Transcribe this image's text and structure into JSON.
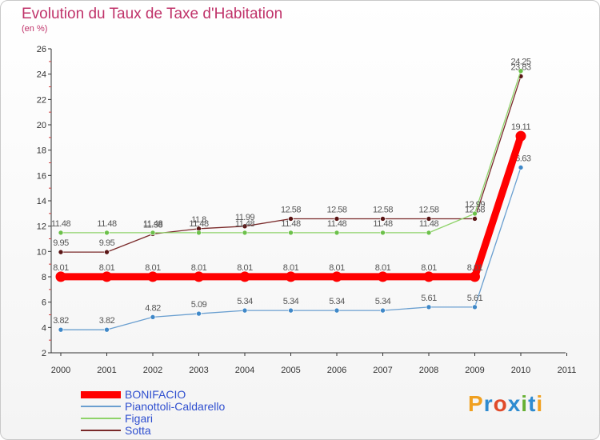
{
  "title": "Evolution du Taux de Taxe d'Habitation",
  "subtitle": "(en %)",
  "logo": {
    "text": "Proxiti",
    "letter_colors": [
      "#f0a020",
      "#2e8bd0",
      "#e04b2a",
      "#2e8bd0",
      "#66b032",
      "#2e8bd0",
      "#f0a020"
    ]
  },
  "chart_data": {
    "type": "line",
    "x": [
      2000,
      2001,
      2002,
      2003,
      2004,
      2005,
      2006,
      2007,
      2008,
      2009,
      2010
    ],
    "x_ticks": [
      2000,
      2001,
      2002,
      2003,
      2004,
      2005,
      2006,
      2007,
      2008,
      2009,
      2010,
      2011
    ],
    "y_ticks": [
      2,
      4,
      6,
      8,
      10,
      12,
      14,
      16,
      18,
      20,
      22,
      24,
      26
    ],
    "xlim": [
      2000,
      2011
    ],
    "ylim": [
      2,
      26
    ],
    "grid": false,
    "legend": "bottom-left",
    "series": [
      {
        "name": "Sotta",
        "color": "#7a2a2a",
        "marker": "#5a1515",
        "width": 1.3,
        "values": [
          9.95,
          9.95,
          11.38,
          11.8,
          11.99,
          12.58,
          12.58,
          12.58,
          12.58,
          12.58,
          23.83
        ],
        "labels": [
          "9.95",
          "9.95",
          "11.38",
          "11.8",
          "11.99",
          "12.58",
          "12.58",
          "12.58",
          "12.58",
          "12.58",
          "23.83"
        ]
      },
      {
        "name": "Figari",
        "color": "#8fd36a",
        "marker": "#6cc04a",
        "width": 1.3,
        "values": [
          11.48,
          11.48,
          11.48,
          11.48,
          11.48,
          11.48,
          11.48,
          11.48,
          11.48,
          12.99,
          24.25
        ],
        "labels": [
          "11.48",
          "11.48",
          "11.48",
          "11.48",
          "11.48",
          "11.48",
          "11.48",
          "11.48",
          "11.48",
          "12.99",
          "24.25"
        ]
      },
      {
        "name": "Pianottoli-Caldarello",
        "color": "#6a9fd0",
        "marker": "#3f88c8",
        "width": 1.3,
        "values": [
          3.82,
          3.82,
          4.82,
          5.09,
          5.34,
          5.34,
          5.34,
          5.34,
          5.61,
          5.61,
          16.63
        ],
        "labels": [
          "3.82",
          "3.82",
          "4.82",
          "5.09",
          "5.34",
          "5.34",
          "5.34",
          "5.34",
          "5.61",
          "5.61",
          "16.63"
        ]
      },
      {
        "name": "BONIFACIO",
        "color": "#ff0000",
        "marker": "#ff0000",
        "width": 9,
        "values": [
          8.01,
          8.01,
          8.01,
          8.01,
          8.01,
          8.01,
          8.01,
          8.01,
          8.01,
          8.01,
          19.11
        ],
        "labels": [
          "8.01",
          "8.01",
          "8.01",
          "8.01",
          "8.01",
          "8.01",
          "8.01",
          "8.01",
          "8.01",
          "8.01",
          "19.11"
        ]
      }
    ],
    "legend_order": [
      "BONIFACIO",
      "Pianottoli-Caldarello",
      "Figari",
      "Sotta"
    ]
  }
}
